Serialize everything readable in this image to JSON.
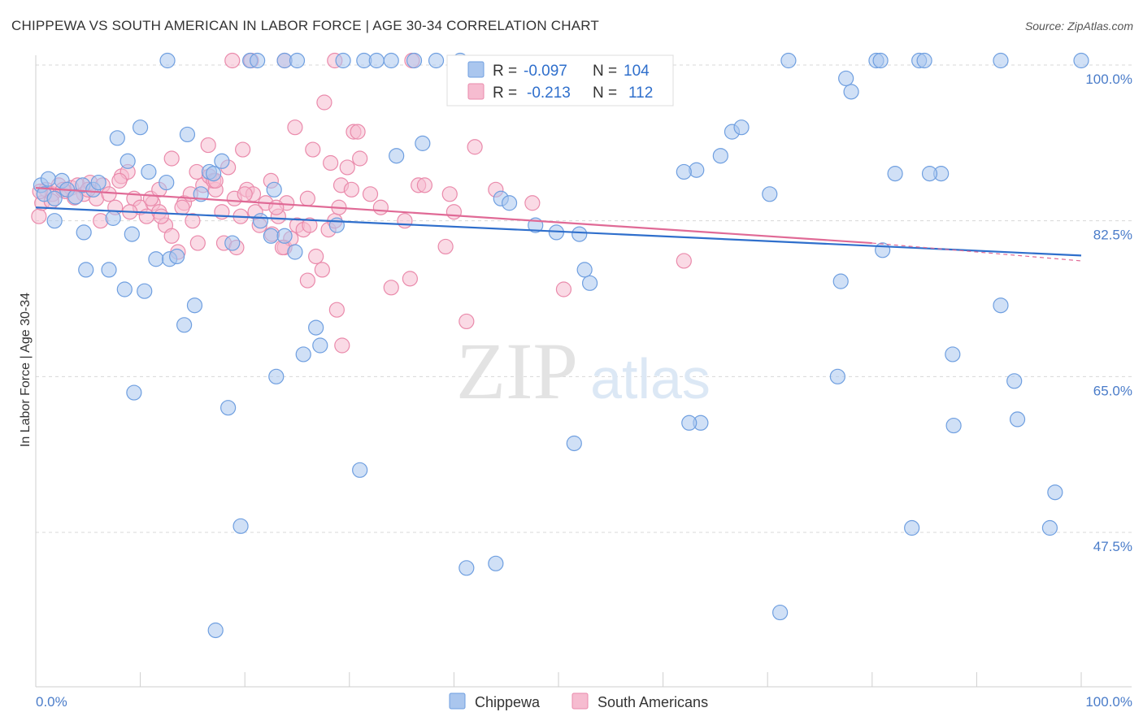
{
  "title": "CHIPPEWA VS SOUTH AMERICAN IN LABOR FORCE | AGE 30-34 CORRELATION CHART",
  "source": "Source: ZipAtlas.com",
  "watermark": {
    "zip": "ZIP",
    "atlas": "atlas"
  },
  "colors": {
    "blue_fill": "#aac6ee",
    "blue_stroke": "#6f9fe0",
    "blue_line": "#2f6fcc",
    "pink_fill": "#f6bcd0",
    "pink_stroke": "#ea8aab",
    "pink_line": "#e06a96",
    "tick_color": "#4a7cc9",
    "grid": "#d8d8d8"
  },
  "legend_top": {
    "rows": [
      {
        "r_label": "R =",
        "r_value": "-0.097",
        "n_label": "N =",
        "n_value": "104"
      },
      {
        "r_label": "R =",
        "r_value": "-0.213",
        "n_label": "N =",
        "n_value": "112"
      }
    ]
  },
  "chart_data": {
    "type": "scatter",
    "title": "CHIPPEWA VS SOUTH AMERICAN IN LABOR FORCE | AGE 30-34 CORRELATION CHART",
    "xlabel": "",
    "ylabel": "In Labor Force | Age 30-34",
    "xlim": [
      0,
      100
    ],
    "ylim": [
      30,
      101.5
    ],
    "x_tick_labels": [
      "0.0%",
      "100.0%"
    ],
    "y_ticks": [
      47.5,
      65.0,
      82.5,
      100.0
    ],
    "y_tick_labels": [
      "47.5%",
      "65.0%",
      "82.5%",
      "100.0%"
    ],
    "grid": "horizontal dashed",
    "legend": "top-center and bottom",
    "series": [
      {
        "name": "Chippewa",
        "r": -0.097,
        "n": 104,
        "trend": {
          "x": [
            0,
            100
          ],
          "y": [
            84.0,
            78.6
          ]
        },
        "points": [
          [
            0.5,
            86.5
          ],
          [
            1.2,
            87.2
          ],
          [
            0.8,
            85.5
          ],
          [
            1.8,
            85.0
          ],
          [
            2.5,
            87.0
          ],
          [
            3.0,
            86.0
          ],
          [
            3.8,
            85.2
          ],
          [
            4.5,
            86.5
          ],
          [
            5.5,
            86.0
          ],
          [
            6.0,
            86.8
          ],
          [
            1.8,
            82.5
          ],
          [
            4.6,
            81.2
          ],
          [
            7.4,
            82.8
          ],
          [
            9.2,
            81.0
          ],
          [
            4.8,
            77.0
          ],
          [
            7.0,
            77.0
          ],
          [
            8.5,
            74.8
          ],
          [
            10.4,
            74.6
          ],
          [
            11.5,
            78.2
          ],
          [
            12.8,
            78.2
          ],
          [
            13.5,
            78.5
          ],
          [
            14.2,
            70.8
          ],
          [
            15.2,
            73.0
          ],
          [
            7.8,
            91.8
          ],
          [
            8.8,
            89.2
          ],
          [
            10.0,
            93.0
          ],
          [
            10.8,
            88.0
          ],
          [
            12.5,
            86.8
          ],
          [
            14.5,
            92.2
          ],
          [
            16.6,
            88.0
          ],
          [
            17.0,
            87.8
          ],
          [
            15.8,
            85.5
          ],
          [
            17.8,
            89.2
          ],
          [
            18.8,
            80.0
          ],
          [
            21.5,
            82.5
          ],
          [
            22.5,
            80.8
          ],
          [
            23.8,
            80.8
          ],
          [
            22.8,
            86.0
          ],
          [
            24.8,
            79.0
          ],
          [
            23.0,
            65.0
          ],
          [
            25.6,
            67.5
          ],
          [
            26.8,
            70.5
          ],
          [
            27.2,
            68.5
          ],
          [
            28.8,
            82.0
          ],
          [
            31.0,
            54.5
          ],
          [
            18.4,
            61.5
          ],
          [
            9.4,
            63.2
          ],
          [
            17.2,
            36.5
          ],
          [
            19.6,
            48.2
          ],
          [
            41.2,
            43.5
          ],
          [
            37.0,
            91.2
          ],
          [
            34.5,
            89.8
          ],
          [
            44.5,
            85.0
          ],
          [
            45.3,
            84.5
          ],
          [
            47.8,
            82.0
          ],
          [
            49.8,
            81.2
          ],
          [
            52.0,
            81.0
          ],
          [
            52.5,
            77.0
          ],
          [
            53.0,
            75.5
          ],
          [
            51.5,
            57.5
          ],
          [
            44.0,
            44.0
          ],
          [
            63.2,
            88.2
          ],
          [
            62.0,
            88.0
          ],
          [
            65.5,
            89.8
          ],
          [
            66.6,
            92.5
          ],
          [
            67.5,
            93.0
          ],
          [
            70.2,
            85.5
          ],
          [
            78.0,
            97.0
          ],
          [
            77.5,
            98.5
          ],
          [
            81.0,
            79.2
          ],
          [
            77.0,
            75.7
          ],
          [
            76.7,
            65.0
          ],
          [
            82.2,
            87.8
          ],
          [
            83.8,
            48.0
          ],
          [
            86.6,
            87.8
          ],
          [
            85.5,
            87.8
          ],
          [
            87.7,
            67.5
          ],
          [
            87.8,
            59.5
          ],
          [
            92.3,
            73.0
          ],
          [
            93.6,
            64.5
          ],
          [
            93.9,
            60.2
          ],
          [
            97.5,
            52.0
          ],
          [
            97.0,
            48.0
          ],
          [
            63.6,
            59.8
          ],
          [
            62.5,
            59.8
          ],
          [
            71.2,
            38.5
          ],
          [
            12.6,
            100.5
          ],
          [
            20.5,
            100.5
          ],
          [
            21.2,
            100.5
          ],
          [
            23.8,
            100.5
          ],
          [
            25.0,
            100.5
          ],
          [
            29.4,
            100.5
          ],
          [
            31.4,
            100.5
          ],
          [
            32.6,
            100.5
          ],
          [
            34.0,
            100.5
          ],
          [
            36.2,
            100.5
          ],
          [
            72.0,
            100.5
          ],
          [
            80.4,
            100.5
          ],
          [
            80.8,
            100.5
          ],
          [
            84.5,
            100.5
          ],
          [
            85.0,
            100.5
          ],
          [
            92.3,
            100.5
          ],
          [
            100.0,
            100.5
          ],
          [
            38.3,
            100.5
          ],
          [
            40.6,
            100.5
          ]
        ]
      },
      {
        "name": "South Americans",
        "r": -0.213,
        "n": 112,
        "trend": {
          "x": [
            0,
            80
          ],
          "y": [
            86.2,
            80.0
          ],
          "dashed_to": [
            100,
            78.0
          ]
        },
        "points": [
          [
            0.3,
            83.0
          ],
          [
            0.6,
            84.5
          ],
          [
            1.0,
            86.0
          ],
          [
            1.6,
            85.5
          ],
          [
            2.2,
            86.5
          ],
          [
            2.8,
            85.8
          ],
          [
            3.4,
            86.2
          ],
          [
            4.0,
            86.5
          ],
          [
            4.6,
            85.5
          ],
          [
            5.2,
            86.8
          ],
          [
            5.8,
            85.0
          ],
          [
            6.4,
            86.5
          ],
          [
            7.0,
            85.5
          ],
          [
            7.6,
            84.0
          ],
          [
            8.2,
            87.5
          ],
          [
            8.8,
            88.0
          ],
          [
            9.4,
            85.0
          ],
          [
            10.0,
            84.0
          ],
          [
            10.6,
            83.0
          ],
          [
            11.2,
            84.5
          ],
          [
            11.8,
            83.5
          ],
          [
            12.4,
            82.0
          ],
          [
            13.0,
            80.8
          ],
          [
            13.6,
            79.0
          ],
          [
            14.2,
            84.5
          ],
          [
            14.8,
            85.5
          ],
          [
            15.4,
            88.0
          ],
          [
            16.0,
            86.5
          ],
          [
            16.6,
            87.5
          ],
          [
            17.2,
            86.0
          ],
          [
            17.8,
            83.5
          ],
          [
            18.4,
            88.5
          ],
          [
            19.0,
            85.0
          ],
          [
            19.6,
            83.0
          ],
          [
            20.2,
            86.0
          ],
          [
            20.8,
            85.5
          ],
          [
            21.4,
            82.0
          ],
          [
            22.0,
            84.5
          ],
          [
            22.6,
            81.0
          ],
          [
            23.2,
            83.0
          ],
          [
            23.8,
            79.5
          ],
          [
            24.4,
            80.5
          ],
          [
            25.0,
            82.0
          ],
          [
            25.6,
            81.5
          ],
          [
            26.2,
            82.0
          ],
          [
            26.8,
            78.5
          ],
          [
            27.4,
            77.0
          ],
          [
            28.0,
            81.5
          ],
          [
            28.6,
            82.5
          ],
          [
            29.2,
            86.5
          ],
          [
            29.8,
            88.5
          ],
          [
            30.4,
            92.5
          ],
          [
            31.0,
            89.5
          ],
          [
            6.2,
            82.5
          ],
          [
            9.0,
            83.5
          ],
          [
            12.0,
            83.0
          ],
          [
            15.0,
            82.5
          ],
          [
            18.0,
            80.0
          ],
          [
            21.0,
            83.5
          ],
          [
            24.0,
            84.5
          ],
          [
            5.0,
            86.0
          ],
          [
            8.0,
            87.0
          ],
          [
            11.0,
            85.0
          ],
          [
            14.0,
            84.0
          ],
          [
            17.0,
            87.0
          ],
          [
            20.0,
            85.5
          ],
          [
            23.0,
            84.0
          ],
          [
            26.0,
            85.0
          ],
          [
            29.0,
            84.0
          ],
          [
            32.0,
            85.5
          ],
          [
            13.0,
            89.5
          ],
          [
            16.5,
            91.0
          ],
          [
            19.8,
            90.5
          ],
          [
            22.5,
            87.0
          ],
          [
            24.8,
            93.0
          ],
          [
            26.5,
            90.5
          ],
          [
            28.2,
            89.0
          ],
          [
            27.6,
            95.8
          ],
          [
            30.8,
            92.5
          ],
          [
            33.0,
            84.0
          ],
          [
            35.3,
            82.5
          ],
          [
            35.8,
            76.0
          ],
          [
            34.0,
            75.0
          ],
          [
            39.6,
            85.5
          ],
          [
            40.0,
            83.5
          ],
          [
            36.6,
            86.5
          ],
          [
            41.2,
            71.2
          ],
          [
            42.0,
            90.8
          ],
          [
            47.5,
            84.5
          ],
          [
            50.5,
            74.8
          ],
          [
            62.0,
            78.0
          ],
          [
            17.2,
            87.0
          ],
          [
            19.2,
            79.5
          ],
          [
            23.6,
            79.5
          ],
          [
            26.0,
            75.8
          ],
          [
            29.3,
            68.5
          ],
          [
            28.8,
            72.5
          ],
          [
            30.2,
            86.0
          ],
          [
            15.5,
            80.0
          ],
          [
            11.8,
            86.0
          ],
          [
            18.8,
            100.5
          ],
          [
            23.8,
            100.5
          ],
          [
            28.6,
            100.5
          ],
          [
            36.0,
            100.5
          ],
          [
            39.2,
            79.6
          ],
          [
            44.0,
            86.0
          ],
          [
            37.2,
            86.5
          ],
          [
            20.6,
            100.5
          ],
          [
            0.4,
            85.8
          ],
          [
            1.5,
            84.7
          ],
          [
            2.6,
            86.0
          ],
          [
            3.7,
            85.1
          ]
        ]
      }
    ]
  },
  "bottom_legend": [
    {
      "label": "Chippewa"
    },
    {
      "label": "South Americans"
    }
  ]
}
